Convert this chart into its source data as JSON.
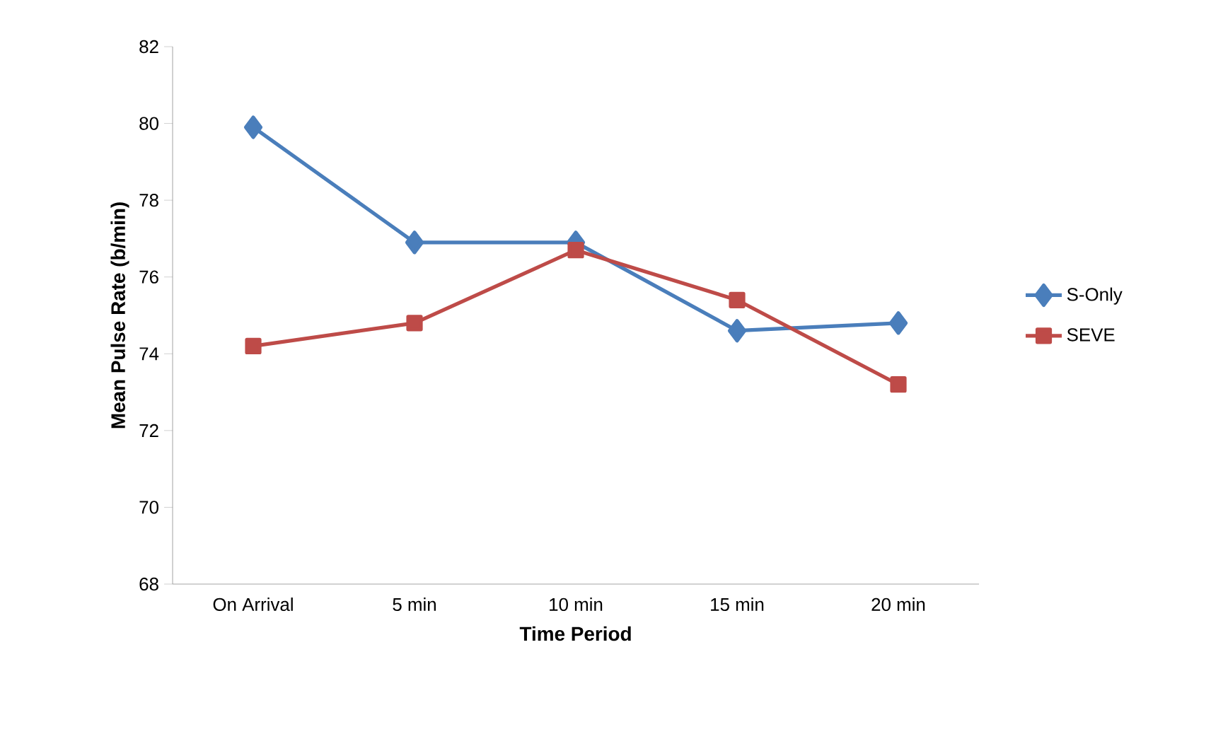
{
  "chart_data": {
    "type": "line",
    "xlabel": "Time Period",
    "ylabel": "Mean Pulse Rate (b/min)",
    "categories": [
      "On Arrival",
      "5 min",
      "10 min",
      "15 min",
      "20 min"
    ],
    "series": [
      {
        "name": "S-Only",
        "color": "#4a7ebb",
        "marker": "diamond",
        "values": [
          79.9,
          76.9,
          76.9,
          74.6,
          74.8
        ]
      },
      {
        "name": "SEVE",
        "color": "#be4b48",
        "marker": "square",
        "values": [
          74.2,
          74.8,
          76.7,
          75.4,
          73.2
        ]
      }
    ],
    "ylim": [
      68,
      82
    ],
    "yticks": [
      68,
      70,
      72,
      74,
      76,
      78,
      80,
      82
    ],
    "grid": false,
    "legend": "right",
    "line_style": "solid"
  }
}
